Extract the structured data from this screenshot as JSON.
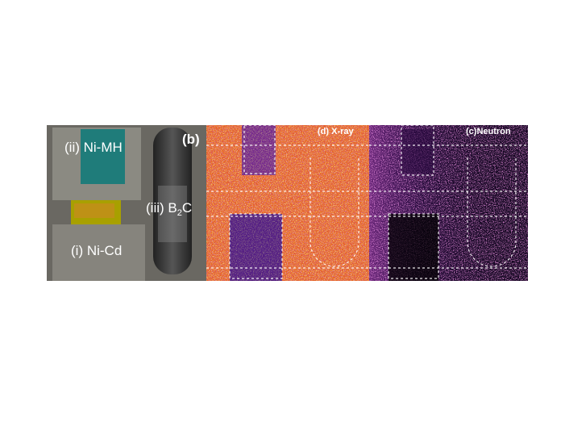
{
  "photo": {
    "labels": {
      "ni_mh": "(ii) Ni-MH",
      "panel": "(b)",
      "b2c": {
        "text": "(iii) B",
        "sub": "2",
        "tail": "C"
      },
      "ni_cd": "(i) Ni-Cd"
    }
  },
  "xray": {
    "label": "(d) X-ray"
  },
  "neutron": {
    "label": "(c)Neutron"
  }
}
